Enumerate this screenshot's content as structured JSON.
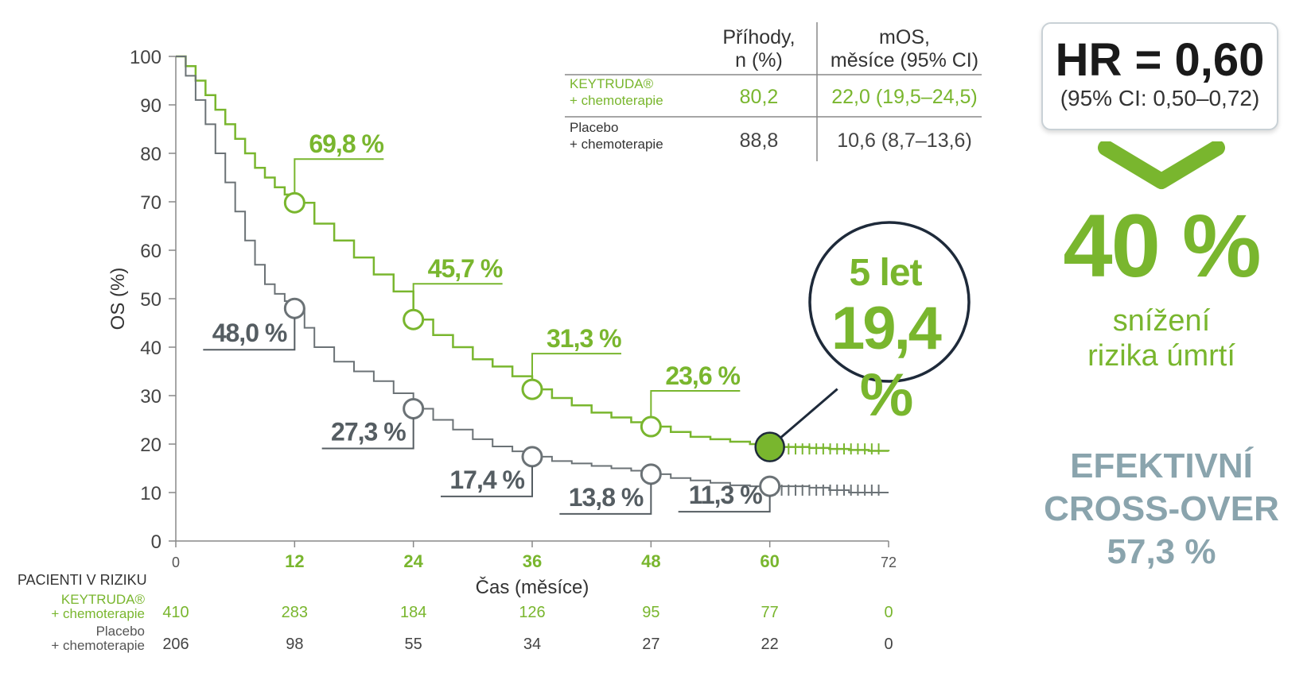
{
  "chart_data": {
    "type": "line",
    "ylabel": "OS (%)",
    "xlabel": "Čas (měsíce)",
    "xlim": [
      0,
      72
    ],
    "ylim": [
      0,
      100
    ],
    "x_ticks": [
      0,
      12,
      24,
      36,
      48,
      60,
      72
    ],
    "y_ticks": [
      0,
      10,
      20,
      30,
      40,
      50,
      60,
      70,
      80,
      90,
      100
    ],
    "series": [
      {
        "name": "KEYTRUDA® + chemoterapie",
        "color": "#79b62e",
        "x": [
          0,
          1,
          2,
          3,
          4,
          5,
          6,
          7,
          8,
          9,
          10,
          11,
          12,
          14,
          16,
          18,
          20,
          22,
          24,
          26,
          28,
          30,
          32,
          34,
          36,
          38,
          40,
          42,
          44,
          46,
          48,
          50,
          52,
          54,
          56,
          58,
          60,
          62,
          64,
          66,
          68,
          70,
          72
        ],
        "y": [
          100,
          98,
          95,
          92,
          89,
          86,
          83,
          80,
          77,
          75,
          73,
          71.5,
          69.8,
          65.5,
          62,
          58.5,
          55,
          51.5,
          45.7,
          42.5,
          40,
          37.5,
          36,
          34,
          31.3,
          29.5,
          28,
          26.5,
          25.5,
          24.5,
          23.6,
          22.5,
          21.5,
          21,
          20.5,
          20,
          19.4,
          19.4,
          19.2,
          19,
          18.8,
          18.6,
          18.5
        ],
        "landmarks": [
          {
            "x": 12,
            "y": 69.8,
            "label": "69,8 %"
          },
          {
            "x": 24,
            "y": 45.7,
            "label": "45,7 %"
          },
          {
            "x": 36,
            "y": 31.3,
            "label": "31,3 %"
          },
          {
            "x": 48,
            "y": 23.6,
            "label": "23,6 %"
          },
          {
            "x": 60,
            "y": 19.4,
            "label": "19,4 %"
          }
        ]
      },
      {
        "name": "Placebo + chemoterapie",
        "color": "#6b7276",
        "x": [
          0,
          1,
          2,
          3,
          4,
          5,
          6,
          7,
          8,
          9,
          10,
          11,
          12,
          13,
          14,
          16,
          18,
          20,
          22,
          24,
          26,
          28,
          30,
          32,
          34,
          36,
          38,
          40,
          42,
          44,
          46,
          48,
          50,
          52,
          54,
          56,
          58,
          60,
          62,
          64,
          66,
          68,
          70,
          72
        ],
        "y": [
          100,
          96,
          91,
          86,
          80,
          74,
          68,
          62,
          57,
          53,
          51,
          49.5,
          48,
          44,
          40,
          37,
          35,
          33,
          30.5,
          27.3,
          25,
          23,
          21,
          19.5,
          18.5,
          17.4,
          16.5,
          16,
          15.5,
          15,
          14.5,
          13.8,
          13,
          12.5,
          12,
          11.5,
          11.3,
          11.3,
          11.3,
          11,
          10.5,
          10,
          10,
          10
        ],
        "landmarks": [
          {
            "x": 12,
            "y": 48.0,
            "label": "48,0 %"
          },
          {
            "x": 24,
            "y": 27.3,
            "label": "27,3 %"
          },
          {
            "x": 36,
            "y": 17.4,
            "label": "17,4 %"
          },
          {
            "x": 48,
            "y": 13.8,
            "label": "13,8 %"
          },
          {
            "x": 60,
            "y": 11.3,
            "label": "11,3 %"
          }
        ]
      }
    ],
    "risk_table": {
      "title": "PACIENTI V RIZIKU",
      "rows": [
        {
          "name_line1": "KEYTRUDA®",
          "name_line2": "+ chemoterapie",
          "values": [
            410,
            283,
            184,
            126,
            95,
            77,
            0
          ]
        },
        {
          "name_line1": "Placebo",
          "name_line2": "+ chemoterapie",
          "values": [
            206,
            98,
            55,
            34,
            27,
            22,
            0
          ]
        }
      ]
    },
    "events_table": {
      "col1_line1": "Příhody,",
      "col1_line2": "n (%)",
      "col2_line1": "mOS,",
      "col2_line2": "měsíce (95% CI)",
      "rows": [
        {
          "name_line1": "KEYTRUDA®",
          "name_line2": "+ chemoterapie",
          "events": "80,2",
          "mos": "22,0 (19,5–24,5)"
        },
        {
          "name_line1": "Placebo",
          "name_line2": "+  chemoterapie",
          "events": "88,8",
          "mos": "10,6 (8,7–13,6)"
        }
      ]
    }
  },
  "callout": {
    "line1": "5 let",
    "line2": "19,4 %"
  },
  "hr": {
    "main": "HR = 0,60",
    "ci": "(95% CI: 0,50–0,72)"
  },
  "reduction": {
    "value": "40 %",
    "line1": "snížení",
    "line2": "rizika úmrtí"
  },
  "crossover": {
    "line1": "EFEKTIVNÍ",
    "line2": "CROSS-OVER",
    "line3": "57,3 %"
  },
  "colors": {
    "green": "#79b62e",
    "gray": "#6b7276",
    "teal": "#8aa4ad"
  }
}
